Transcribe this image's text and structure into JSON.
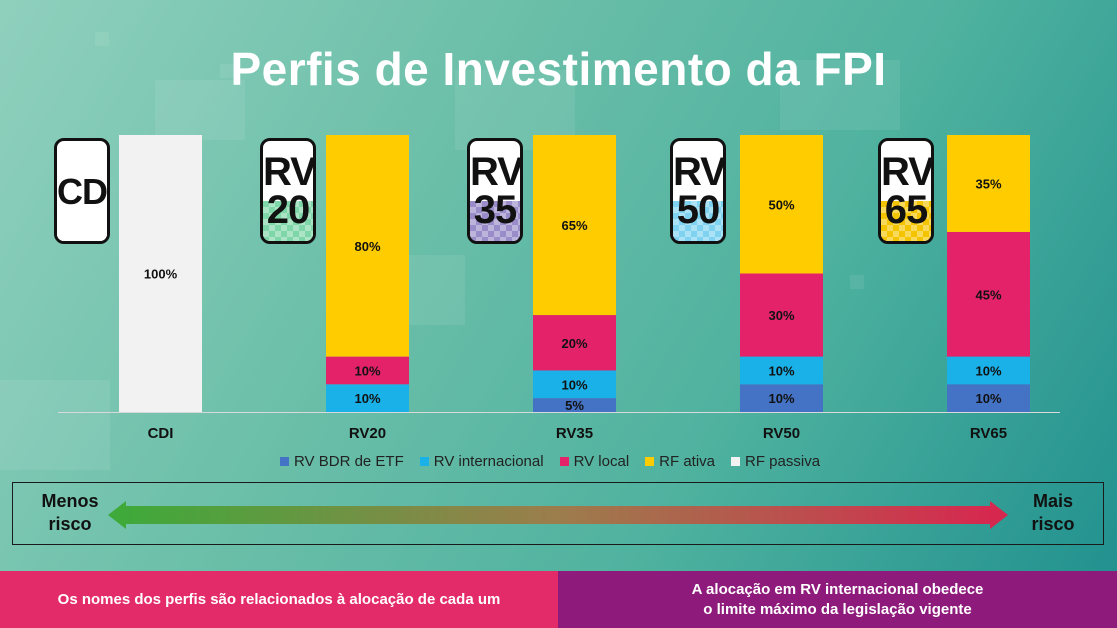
{
  "title": "Perfis de Investimento da FPI",
  "badges": [
    {
      "line1": "CDI",
      "line2": "",
      "color": "#ffffff"
    },
    {
      "line1": "RV",
      "line2": "20",
      "color": "#7fd6a8"
    },
    {
      "line1": "RV",
      "line2": "35",
      "color": "#9a8cc9"
    },
    {
      "line1": "RV",
      "line2": "50",
      "color": "#7fd3f0"
    },
    {
      "line1": "RV",
      "line2": "65",
      "color": "#f5c400"
    }
  ],
  "chart_data": {
    "type": "bar",
    "stacked": true,
    "categories": [
      "CDI",
      "RV20",
      "RV35",
      "RV50",
      "RV65"
    ],
    "ylim": [
      0,
      100
    ],
    "series": [
      {
        "name": "RV BDR de ETF",
        "color": "#4472c4",
        "values": [
          0,
          0,
          5,
          10,
          10
        ]
      },
      {
        "name": "RV internacional",
        "color": "#1ab0e8",
        "values": [
          0,
          10,
          10,
          10,
          10
        ]
      },
      {
        "name": "RV local",
        "color": "#e3226a",
        "values": [
          0,
          10,
          20,
          30,
          45
        ]
      },
      {
        "name": "RF ativa",
        "color": "#ffcc00",
        "values": [
          0,
          80,
          65,
          50,
          35
        ]
      },
      {
        "name": "RF passiva",
        "color": "#f2f2f2",
        "values": [
          100,
          0,
          0,
          0,
          0
        ]
      }
    ],
    "data_labels": [
      [
        null,
        null,
        "5%",
        "10%",
        "10%"
      ],
      [
        null,
        "10%",
        "10%",
        "10%",
        "10%"
      ],
      [
        null,
        "10%",
        "20%",
        "30%",
        "45%"
      ],
      [
        null,
        "80%",
        "65%",
        "50%",
        "35%"
      ],
      [
        "100%",
        null,
        null,
        null,
        null
      ]
    ],
    "legend_position": "bottom",
    "grid": false
  },
  "risk": {
    "left_label_line1": "Menos",
    "left_label_line2": "risco",
    "right_label_line1": "Mais",
    "right_label_line2": "risco"
  },
  "footer": {
    "left": "Os nomes dos perfis são relacionados à alocação de cada um",
    "right_line1": "A alocação em RV internacional obedece",
    "right_line2": "o limite máximo da legislação vigente"
  }
}
